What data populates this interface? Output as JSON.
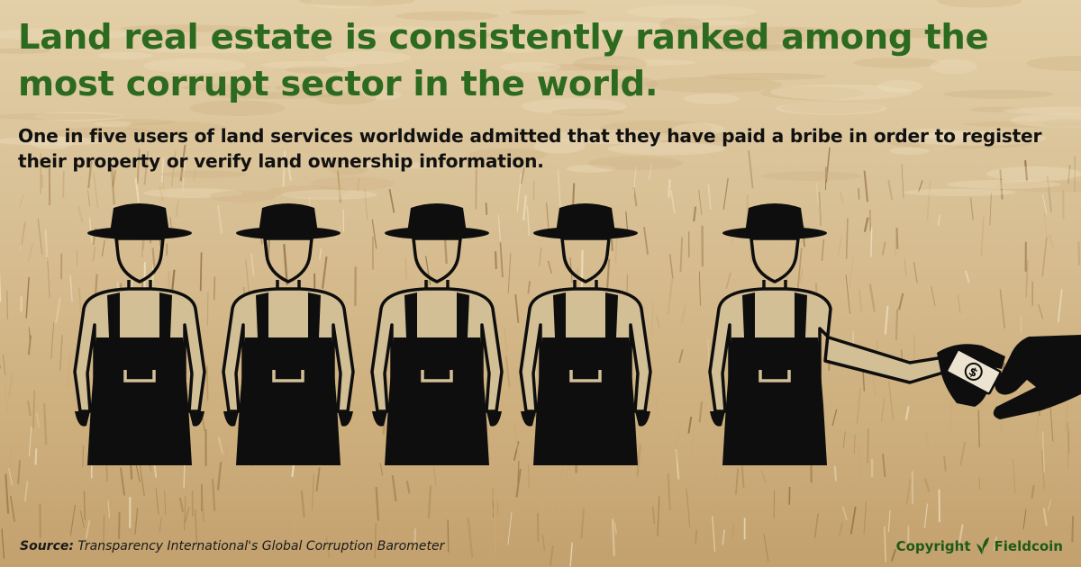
{
  "headline": "Land real estate is consistently ranked among the most corrupt sector in the world.",
  "subheadline": "One in five users of land services worldwide admitted that they have paid a bribe in order to register their property or verify land ownership information.",
  "illustration": {
    "farmer_count": 5,
    "bribe_hands": true,
    "money_symbol": "$",
    "colors": {
      "figure": "#0e0e0e",
      "shirt": "#d2bf96",
      "field_light": "#e3cfa8",
      "field_dark": "#c3a16e"
    }
  },
  "footer": {
    "source_label": "Source:",
    "source_text": "Transparency International's Global Corruption Barometer",
    "copyright_label": "Copyright",
    "brand_name": "Fieldcoin",
    "brand_icon": "wheat-leaf-icon",
    "brand_color": "#1f5a17"
  }
}
